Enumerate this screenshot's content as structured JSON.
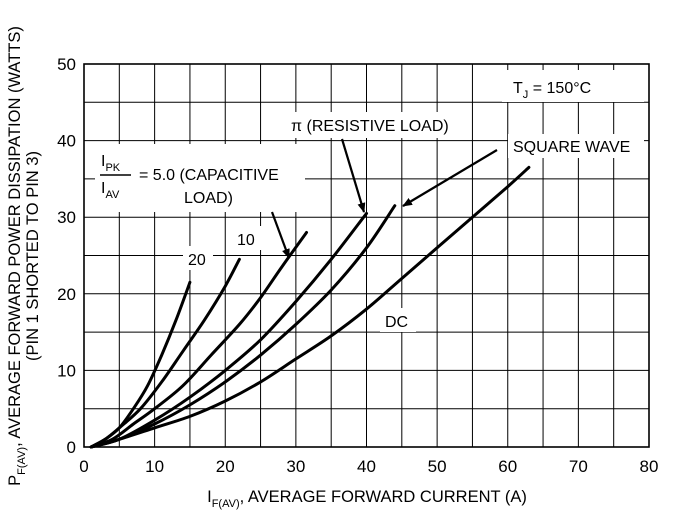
{
  "chart_data": {
    "type": "line",
    "xlim": [
      0,
      80
    ],
    "ylim": [
      0,
      50
    ],
    "x_ticks": [
      "0",
      "10",
      "20",
      "30",
      "40",
      "50",
      "60",
      "70",
      "80"
    ],
    "y_ticks": [
      "0",
      "10",
      "20",
      "30",
      "40",
      "50"
    ],
    "grid": true,
    "xlabel": {
      "prefix": "I",
      "sub": "F(AV)",
      "suffix": ", AVERAGE FORWARD CURRENT (A)"
    },
    "ylabel": {
      "prefix": "P",
      "sub": "F(AV)",
      "suffix": ", AVERAGE FORWARD POWER DISSIPATION (WATTS)",
      "line2": "(PIN 1 SHORTED TO PIN 3)"
    },
    "condition": {
      "prefix": "T",
      "sub": "J",
      "suffix": " = 150°C"
    },
    "series": [
      {
        "name": "20",
        "points": [
          [
            1,
            0
          ],
          [
            3,
            1
          ],
          [
            5,
            2.5
          ],
          [
            7,
            5
          ],
          [
            9,
            8
          ],
          [
            11,
            12
          ],
          [
            13,
            16.5
          ],
          [
            15,
            21.5
          ]
        ]
      },
      {
        "name": "10",
        "points": [
          [
            1,
            0
          ],
          [
            3,
            1
          ],
          [
            5,
            2.5
          ],
          [
            8,
            5
          ],
          [
            11,
            8.5
          ],
          [
            14,
            12.5
          ],
          [
            17,
            16.5
          ],
          [
            20,
            21
          ],
          [
            22,
            24.5
          ]
        ]
      },
      {
        "name": "5.0",
        "points": [
          [
            1,
            0
          ],
          [
            4,
            1
          ],
          [
            7,
            3
          ],
          [
            10,
            5
          ],
          [
            14,
            8
          ],
          [
            18,
            12
          ],
          [
            22,
            16
          ],
          [
            25,
            19.5
          ],
          [
            28,
            23.5
          ],
          [
            31.5,
            28
          ]
        ]
      },
      {
        "name": "π (RESISTIVE LOAD)",
        "points": [
          [
            1,
            0
          ],
          [
            5,
            1
          ],
          [
            10,
            3.5
          ],
          [
            15,
            6.5
          ],
          [
            20,
            10
          ],
          [
            25,
            14
          ],
          [
            30,
            19
          ],
          [
            35,
            24.5
          ],
          [
            40,
            30.5
          ]
        ]
      },
      {
        "name": "SQUARE WAVE",
        "points": [
          [
            1,
            0
          ],
          [
            5,
            1
          ],
          [
            10,
            3
          ],
          [
            15,
            5.5
          ],
          [
            20,
            8.5
          ],
          [
            25,
            12
          ],
          [
            30,
            16
          ],
          [
            35,
            20.5
          ],
          [
            40,
            26
          ],
          [
            44,
            31.5
          ]
        ]
      },
      {
        "name": "DC",
        "points": [
          [
            1,
            0
          ],
          [
            5,
            1
          ],
          [
            10,
            2.5
          ],
          [
            15,
            4
          ],
          [
            20,
            6
          ],
          [
            25,
            8.5
          ],
          [
            30,
            11.5
          ],
          [
            35,
            14.5
          ],
          [
            40,
            18
          ],
          [
            45,
            22
          ],
          [
            50,
            26
          ],
          [
            55,
            30
          ],
          [
            60,
            34
          ],
          [
            63,
            36.5
          ]
        ]
      }
    ],
    "annotations": {
      "ratio_num": {
        "prefix": "I",
        "sub": "PK"
      },
      "ratio_den": {
        "prefix": "I",
        "sub": "AV"
      },
      "capacitive_line1": "= 5.0 (CAPACITIVE",
      "capacitive_line2": "LOAD)",
      "label_20": "20",
      "label_10": "10",
      "label_resistive": "π (RESISTIVE LOAD)",
      "label_square": "SQUARE WAVE",
      "label_dc": "DC"
    }
  }
}
